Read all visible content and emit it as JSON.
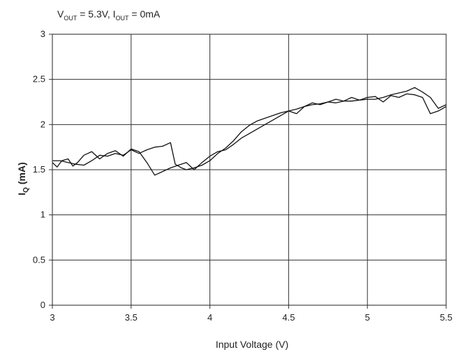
{
  "chart_data": {
    "type": "line",
    "title": {
      "main": "V",
      "vsub": "OUT",
      "mid": " = 5.3V, I",
      "isub": "OUT",
      "end": " = 0mA"
    },
    "xlabel": "Input Voltage (V)",
    "ylabel": {
      "main": "I",
      "sub": "Q",
      "unit": " (mA)"
    },
    "xlim": [
      3,
      5.5
    ],
    "ylim": [
      0,
      3
    ],
    "grid": true,
    "x_ticks": [
      "3",
      "3.5",
      "4",
      "4.5",
      "5",
      "5.5"
    ],
    "y_ticks": [
      "0",
      "0.5",
      "1",
      "1.5",
      "2",
      "2.5",
      "3"
    ],
    "series": [
      {
        "x": [
          3.0,
          3.05,
          3.1,
          3.15,
          3.2,
          3.25,
          3.3,
          3.35,
          3.4,
          3.45,
          3.5,
          3.55,
          3.6,
          3.65,
          3.7,
          3.75,
          3.78,
          3.82,
          3.85,
          3.9,
          3.95,
          4.0,
          4.05,
          4.1,
          4.15,
          4.2,
          4.25,
          4.3,
          4.35,
          4.4,
          4.45,
          4.5,
          4.55,
          4.6,
          4.65,
          4.7,
          4.75,
          4.8,
          4.85,
          4.9,
          4.95,
          5.0,
          5.05,
          5.1,
          5.15,
          5.2,
          5.25,
          5.3,
          5.35,
          5.4,
          5.45,
          5.5
        ],
        "y": [
          1.6,
          1.6,
          1.58,
          1.56,
          1.55,
          1.6,
          1.66,
          1.65,
          1.68,
          1.66,
          1.72,
          1.68,
          1.72,
          1.75,
          1.76,
          1.8,
          1.56,
          1.52,
          1.5,
          1.52,
          1.55,
          1.6,
          1.68,
          1.74,
          1.82,
          1.92,
          1.99,
          2.04,
          2.07,
          2.1,
          2.13,
          2.15,
          2.17,
          2.2,
          2.22,
          2.23,
          2.25,
          2.24,
          2.26,
          2.26,
          2.27,
          2.28,
          2.28,
          2.3,
          2.33,
          2.35,
          2.37,
          2.41,
          2.36,
          2.3,
          2.18,
          2.22
        ]
      },
      {
        "x": [
          3.0,
          3.03,
          3.06,
          3.1,
          3.13,
          3.16,
          3.2,
          3.25,
          3.3,
          3.35,
          3.4,
          3.45,
          3.5,
          3.55,
          3.6,
          3.65,
          3.7,
          3.75,
          3.8,
          3.85,
          3.9,
          3.95,
          4.0,
          4.05,
          4.1,
          4.15,
          4.2,
          4.25,
          4.3,
          4.35,
          4.4,
          4.45,
          4.5,
          4.55,
          4.6,
          4.65,
          4.7,
          4.75,
          4.8,
          4.85,
          4.9,
          4.95,
          5.0,
          5.05,
          5.1,
          5.15,
          5.2,
          5.25,
          5.3,
          5.35,
          5.4,
          5.45,
          5.5
        ],
        "y": [
          1.58,
          1.53,
          1.6,
          1.62,
          1.54,
          1.58,
          1.66,
          1.7,
          1.62,
          1.68,
          1.71,
          1.65,
          1.73,
          1.7,
          1.58,
          1.44,
          1.48,
          1.52,
          1.55,
          1.58,
          1.5,
          1.58,
          1.65,
          1.7,
          1.72,
          1.78,
          1.85,
          1.9,
          1.95,
          2.0,
          2.05,
          2.1,
          2.15,
          2.12,
          2.2,
          2.24,
          2.22,
          2.25,
          2.28,
          2.26,
          2.3,
          2.27,
          2.3,
          2.31,
          2.25,
          2.32,
          2.3,
          2.34,
          2.33,
          2.3,
          2.12,
          2.15,
          2.2
        ]
      }
    ]
  }
}
